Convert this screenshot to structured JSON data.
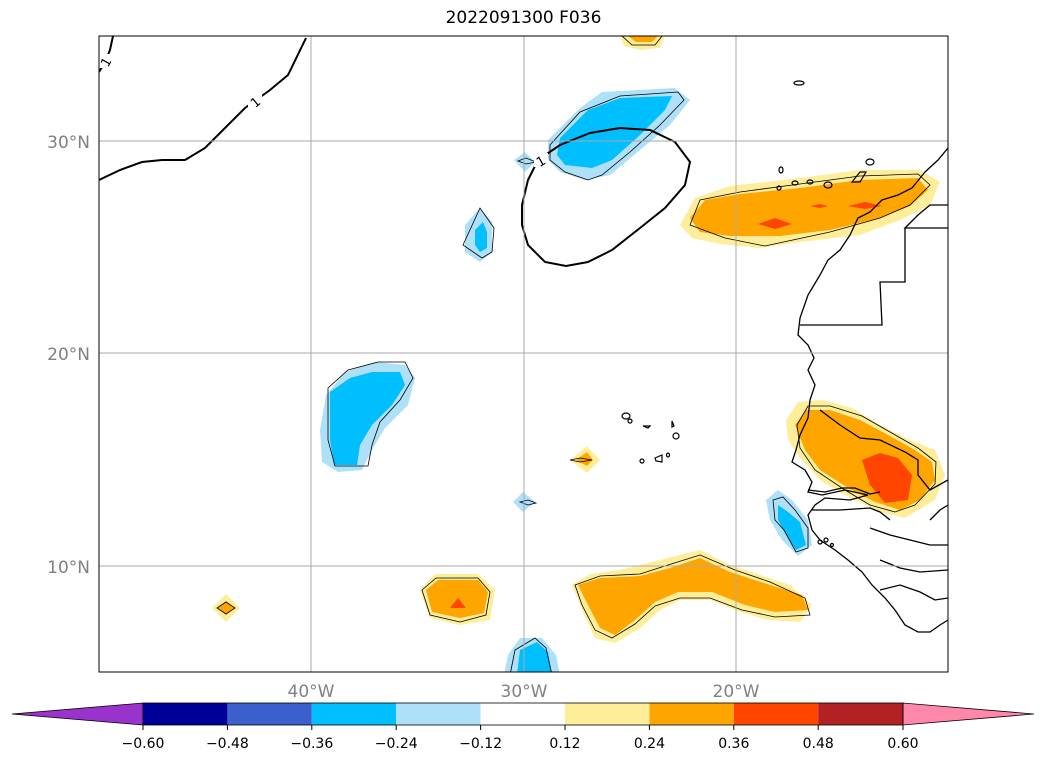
{
  "title": "2022091300 F036",
  "latitude_labels": [
    "30°N",
    "20°N",
    "10°N"
  ],
  "longitude_labels": [
    "40°W",
    "30°W",
    "20°W"
  ],
  "contour_labels": [
    "1",
    "1",
    "1"
  ],
  "colorbar": {
    "tick_labels": [
      "−0.60",
      "−0.48",
      "−0.36",
      "−0.24",
      "−0.12",
      "0.12",
      "0.24",
      "0.36",
      "0.48",
      "0.60"
    ],
    "colors": [
      "#9933cc",
      "#000099",
      "#3b5fcc",
      "#00bfff",
      "#aee0f7",
      "#ffffff",
      "#ffee99",
      "#ffa500",
      "#ff4500",
      "#b22222",
      "#ff88aa"
    ],
    "extend": "both"
  },
  "shading_colors": {
    "light_blue": "#aee0f7",
    "deep_sky_blue": "#00bfff",
    "light_yellow": "#ffee99",
    "orange": "#ffa500",
    "orange_red": "#ff4500"
  }
}
